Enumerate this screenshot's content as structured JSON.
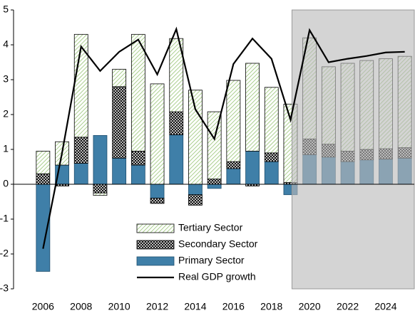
{
  "chart_data": {
    "type": "stacked_bar_line",
    "categories": [
      "2006",
      null,
      "2008",
      null,
      "2010",
      null,
      "2012",
      null,
      "2014",
      null,
      "2016",
      null,
      "2018",
      null,
      "2020",
      null,
      "2022",
      null,
      "2024",
      null
    ],
    "series": [
      {
        "name": "Primary Sector",
        "kind": "bar",
        "color": "#3f7fa8",
        "values": [
          -2.5,
          0.55,
          0.6,
          1.4,
          0.75,
          0.55,
          -0.4,
          1.42,
          -0.3,
          -0.12,
          0.45,
          0.95,
          0.65,
          -0.3,
          0.85,
          0.78,
          0.65,
          0.7,
          0.72,
          0.75
        ]
      },
      {
        "name": "Secondary Sector",
        "kind": "bar",
        "color": "#000000",
        "values": [
          0.3,
          -0.05,
          0.75,
          -0.25,
          2.05,
          0.4,
          -0.15,
          0.66,
          -0.3,
          0.15,
          0.2,
          -0.05,
          0.25,
          0.05,
          0.45,
          0.37,
          0.3,
          0.3,
          0.3,
          0.3
        ]
      },
      {
        "name": "Tertiary Sector",
        "kind": "bar",
        "color": "#8fbf6a",
        "values": [
          0.65,
          0.67,
          2.95,
          -0.07,
          0.5,
          3.35,
          2.88,
          2.1,
          2.7,
          1.93,
          2.33,
          2.52,
          1.88,
          2.25,
          2.9,
          2.22,
          2.52,
          2.55,
          2.58,
          2.62
        ]
      },
      {
        "name": "Real GDP growth",
        "kind": "line",
        "color": "#000000",
        "values": [
          -1.85,
          0.9,
          3.95,
          3.25,
          3.8,
          4.15,
          3.15,
          4.45,
          2.15,
          1.3,
          3.45,
          4.18,
          3.6,
          1.85,
          4.42,
          3.5,
          3.6,
          3.68,
          3.78,
          3.8
        ]
      }
    ],
    "ylim": [
      -3,
      5
    ],
    "yticks": [
      -3,
      -2,
      -1,
      0,
      1,
      2,
      3,
      4,
      5
    ],
    "legend": "bottom"
  }
}
